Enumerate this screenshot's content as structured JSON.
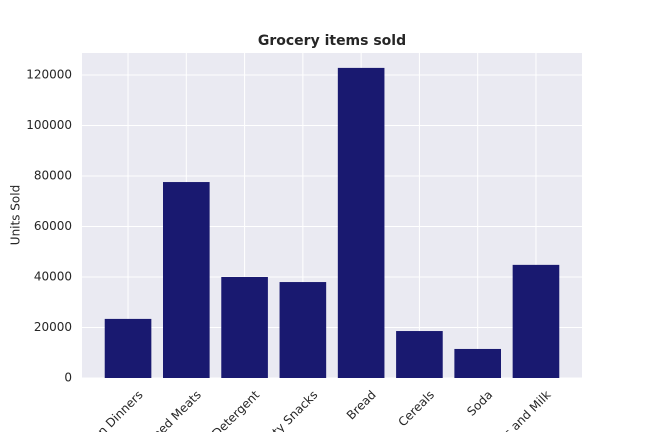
{
  "chart_data": {
    "type": "bar",
    "title": "Grocery items sold",
    "y_label": "Units Sold",
    "categories": [
      "n Dinners",
      "ned Meats",
      "Detergent",
      "ty Snacks",
      "Bread",
      "Cereals",
      "Soda",
      "s and Milk"
    ],
    "values": [
      23400,
      77600,
      40000,
      38000,
      122800,
      18600,
      11500,
      44800
    ],
    "color": "#191970",
    "ylim": [
      0,
      128700
    ],
    "yticks": [
      0,
      20000,
      40000,
      60000,
      80000,
      100000,
      120000
    ],
    "grid": true
  }
}
